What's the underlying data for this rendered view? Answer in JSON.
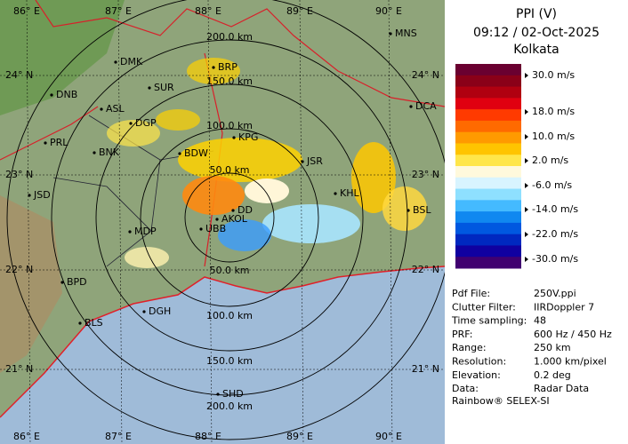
{
  "header": {
    "title": "PPI (V)",
    "time": "09:12 / 02-Oct-2025",
    "site": "Kolkata"
  },
  "color_scale": {
    "labels": [
      "30.0 m/s",
      "18.0 m/s",
      "10.0 m/s",
      "2.0 m/s",
      "-6.0 m/s",
      "-14.0 m/s",
      "-22.0 m/s",
      "-30.0 m/s"
    ],
    "colors": [
      "#6a0030",
      "#8a0018",
      "#b00010",
      "#e00010",
      "#ff3a00",
      "#ff6a00",
      "#ff9a00",
      "#ffc400",
      "#ffe64a",
      "#fff9dc",
      "#d8f4ff",
      "#8ee0ff",
      "#44baff",
      "#1088f0",
      "#0058e0",
      "#0028c0",
      "#1000a0",
      "#400070"
    ]
  },
  "info": [
    [
      "Pdf File:",
      "250V.ppi"
    ],
    [
      "Clutter Filter:",
      "IIRDoppler 7"
    ],
    [
      "Time sampling:",
      "48"
    ],
    [
      "PRF:",
      "600 Hz / 450 Hz"
    ],
    [
      "Range:",
      "250 km"
    ],
    [
      "Resolution:",
      "1.000 km/pixel"
    ],
    [
      "Elevation:",
      "0.2 deg"
    ],
    [
      "Data:",
      "Radar Data"
    ]
  ],
  "footer": "Rainbow® SELEX-SI",
  "map": {
    "lon_labels": [
      "86° E",
      "87° E",
      "88° E",
      "89° E",
      "90° E"
    ],
    "lat_labels": [
      "24° N",
      "23° N",
      "22° N",
      "21° N"
    ],
    "ring_labels_top": [
      "50.0 km",
      "100.0 km",
      "150.0 km",
      "200.0 km"
    ],
    "ring_labels_bottom": [
      "50.0 km",
      "100.0 km",
      "150.0 km",
      "200.0 km"
    ],
    "cities": [
      "MNS",
      "DMK",
      "BRP",
      "DNB",
      "SUR",
      "ASL",
      "DGP",
      "KPG",
      "DCA",
      "PRL",
      "BNK",
      "BDW",
      "JSR",
      "KHL",
      "JSD",
      "DD",
      "BSL",
      "AKOL",
      "UBB",
      "MDP",
      "BPD",
      "DGH",
      "BLS",
      "SHD"
    ]
  }
}
